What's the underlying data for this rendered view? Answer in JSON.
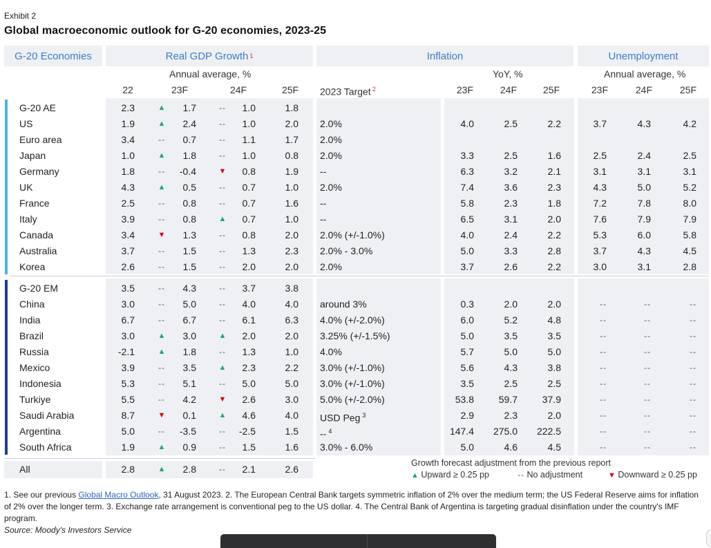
{
  "exhibit_label": "Exhibit 2",
  "title": "Global macroeconomic outlook for G-20 economies, 2023-25",
  "headers": {
    "economies": "G-20 Economies",
    "gdp": "Real GDP Growth",
    "gdp_note": "1",
    "inflation": "Inflation",
    "unemployment": "Unemployment"
  },
  "subheaders": {
    "gdp_unit": "Annual average, %",
    "inflation_unit": "YoY, %",
    "unemployment_unit": "Annual average, %",
    "gdp_years": [
      "22",
      "23F",
      "24F",
      "25F"
    ],
    "target_label": "2023 Target",
    "target_note": "2",
    "infl_years": [
      "23F",
      "24F",
      "25F"
    ],
    "unemp_years": [
      "23F",
      "24F",
      "25F"
    ]
  },
  "rows": [
    {
      "name": "G-20 AE",
      "g22": "2.3",
      "a23": "up",
      "g23": "1.7",
      "a24": "none",
      "g24": "1.0",
      "g25": "1.8",
      "target": "",
      "i23": "",
      "i24": "",
      "i25": "",
      "u23": "",
      "u24": "",
      "u25": ""
    },
    {
      "name": "US",
      "g22": "1.9",
      "a23": "up",
      "g23": "2.4",
      "a24": "none",
      "g24": "1.0",
      "g25": "2.0",
      "target": "2.0%",
      "i23": "4.0",
      "i24": "2.5",
      "i25": "2.2",
      "u23": "3.7",
      "u24": "4.3",
      "u25": "4.2"
    },
    {
      "name": "Euro area",
      "g22": "3.4",
      "a23": "none",
      "g23": "0.7",
      "a24": "none",
      "g24": "1.1",
      "g25": "1.7",
      "target": "2.0%",
      "i23": "",
      "i24": "",
      "i25": "",
      "u23": "",
      "u24": "",
      "u25": ""
    },
    {
      "name": "Japan",
      "g22": "1.0",
      "a23": "up",
      "g23": "1.8",
      "a24": "none",
      "g24": "1.0",
      "g25": "0.8",
      "target": "2.0%",
      "i23": "3.3",
      "i24": "2.5",
      "i25": "1.6",
      "u23": "2.5",
      "u24": "2.4",
      "u25": "2.5"
    },
    {
      "name": "Germany",
      "g22": "1.8",
      "a23": "none",
      "g23": "-0.4",
      "a24": "down",
      "g24": "0.8",
      "g25": "1.9",
      "target": "--",
      "i23": "6.3",
      "i24": "3.2",
      "i25": "2.1",
      "u23": "3.1",
      "u24": "3.1",
      "u25": "3.1"
    },
    {
      "name": "UK",
      "g22": "4.3",
      "a23": "up",
      "g23": "0.5",
      "a24": "none",
      "g24": "0.7",
      "g25": "1.0",
      "target": "2.0%",
      "i23": "7.4",
      "i24": "3.6",
      "i25": "2.3",
      "u23": "4.3",
      "u24": "5.0",
      "u25": "5.2"
    },
    {
      "name": "France",
      "g22": "2.5",
      "a23": "none",
      "g23": "0.8",
      "a24": "none",
      "g24": "0.7",
      "g25": "1.6",
      "target": "--",
      "i23": "5.8",
      "i24": "2.3",
      "i25": "1.8",
      "u23": "7.2",
      "u24": "7.8",
      "u25": "8.0"
    },
    {
      "name": "Italy",
      "g22": "3.9",
      "a23": "none",
      "g23": "0.8",
      "a24": "up",
      "g24": "0.7",
      "g25": "1.0",
      "target": "--",
      "i23": "6.5",
      "i24": "3.1",
      "i25": "2.0",
      "u23": "7.6",
      "u24": "7.9",
      "u25": "7.9"
    },
    {
      "name": "Canada",
      "g22": "3.4",
      "a23": "down",
      "g23": "1.3",
      "a24": "none",
      "g24": "0.8",
      "g25": "2.0",
      "target": "2.0% (+/-1.0%)",
      "i23": "4.0",
      "i24": "2.4",
      "i25": "2.2",
      "u23": "5.3",
      "u24": "6.0",
      "u25": "5.8"
    },
    {
      "name": "Australia",
      "g22": "3.7",
      "a23": "none",
      "g23": "1.5",
      "a24": "none",
      "g24": "1.3",
      "g25": "2.3",
      "target": "2.0% - 3.0%",
      "i23": "5.0",
      "i24": "3.3",
      "i25": "2.8",
      "u23": "3.7",
      "u24": "4.3",
      "u25": "4.5"
    },
    {
      "name": "Korea",
      "g22": "2.6",
      "a23": "none",
      "g23": "1.5",
      "a24": "none",
      "g24": "2.0",
      "g25": "2.0",
      "target": "2.0%",
      "i23": "3.7",
      "i24": "2.6",
      "i25": "2.2",
      "u23": "3.0",
      "u24": "3.1",
      "u25": "2.8"
    },
    {
      "name": "G-20 EM",
      "g22": "3.5",
      "a23": "none",
      "g23": "4.3",
      "a24": "none",
      "g24": "3.7",
      "g25": "3.8",
      "target": "",
      "i23": "",
      "i24": "",
      "i25": "",
      "u23": "",
      "u24": "",
      "u25": ""
    },
    {
      "name": "China",
      "g22": "3.0",
      "a23": "none",
      "g23": "5.0",
      "a24": "none",
      "g24": "4.0",
      "g25": "4.0",
      "target": "around 3%",
      "i23": "0.3",
      "i24": "2.0",
      "i25": "2.0",
      "u23": "--",
      "u24": "--",
      "u25": "--"
    },
    {
      "name": "India",
      "g22": "6.7",
      "a23": "none",
      "g23": "6.7",
      "a24": "none",
      "g24": "6.1",
      "g25": "6.3",
      "target": "4.0% (+/-2.0%)",
      "i23": "6.0",
      "i24": "5.2",
      "i25": "4.8",
      "u23": "--",
      "u24": "--",
      "u25": "--"
    },
    {
      "name": "Brazil",
      "g22": "3.0",
      "a23": "up",
      "g23": "3.0",
      "a24": "up",
      "g24": "2.0",
      "g25": "2.0",
      "target": "3.25% (+/-1.5%)",
      "i23": "5.0",
      "i24": "3.5",
      "i25": "3.5",
      "u23": "--",
      "u24": "--",
      "u25": "--"
    },
    {
      "name": "Russia",
      "g22": "-2.1",
      "a23": "up",
      "g23": "1.8",
      "a24": "none",
      "g24": "1.3",
      "g25": "1.0",
      "target": "4.0%",
      "i23": "5.7",
      "i24": "5.0",
      "i25": "5.0",
      "u23": "--",
      "u24": "--",
      "u25": "--"
    },
    {
      "name": "Mexico",
      "g22": "3.9",
      "a23": "none",
      "g23": "3.5",
      "a24": "up",
      "g24": "2.3",
      "g25": "2.2",
      "target": "3.0% (+/-1.0%)",
      "i23": "5.6",
      "i24": "4.3",
      "i25": "3.8",
      "u23": "--",
      "u24": "--",
      "u25": "--"
    },
    {
      "name": "Indonesia",
      "g22": "5.3",
      "a23": "none",
      "g23": "5.1",
      "a24": "none",
      "g24": "5.0",
      "g25": "5.0",
      "target": "3.0% (+/-1.0%)",
      "i23": "3.5",
      "i24": "2.5",
      "i25": "2.5",
      "u23": "--",
      "u24": "--",
      "u25": "--"
    },
    {
      "name": "Turkiye",
      "g22": "5.5",
      "a23": "none",
      "g23": "4.2",
      "a24": "down",
      "g24": "2.6",
      "g25": "3.0",
      "target": "5.0% (+/-2.0%)",
      "i23": "53.8",
      "i24": "59.7",
      "i25": "37.9",
      "u23": "--",
      "u24": "--",
      "u25": "--"
    },
    {
      "name": "Saudi Arabia",
      "g22": "8.7",
      "a23": "down",
      "g23": "0.1",
      "a24": "up",
      "g24": "4.6",
      "g25": "4.0",
      "target": "USD Peg",
      "target_note": "3",
      "i23": "2.9",
      "i24": "2.3",
      "i25": "2.0",
      "u23": "--",
      "u24": "--",
      "u25": "--"
    },
    {
      "name": "Argentina",
      "g22": "5.0",
      "a23": "none",
      "g23": "-3.5",
      "a24": "none",
      "g24": "-2.5",
      "g25": "1.5",
      "target": "--",
      "target_note": "4",
      "i23": "147.4",
      "i24": "275.0",
      "i25": "222.5",
      "u23": "--",
      "u24": "--",
      "u25": "--"
    },
    {
      "name": "South Africa",
      "g22": "1.9",
      "a23": "up",
      "g23": "0.9",
      "a24": "none",
      "g24": "1.5",
      "g25": "1.6",
      "target": "3.0% - 6.0%",
      "i23": "5.0",
      "i24": "4.6",
      "i25": "4.5",
      "u23": "--",
      "u24": "--",
      "u25": "--"
    },
    {
      "name": "All",
      "g22": "2.8",
      "a23": "up",
      "g23": "2.8",
      "a24": "none",
      "g24": "2.1",
      "g25": "2.6",
      "target": "",
      "i23": "",
      "i24": "",
      "i25": "",
      "u23": "",
      "u24": "",
      "u25": ""
    }
  ],
  "symbols": {
    "up": "▲",
    "down": "▼",
    "none": "--"
  },
  "legend": {
    "title": "Growth forecast adjustment from the previous report",
    "up_label": "Upward ≥ 0.25 pp",
    "none_label": "No adjustment",
    "down_label": "Downward ≥ 0.25 pp"
  },
  "colors": {
    "up": "#1aa877",
    "down": "#d9001b",
    "header_text": "#3d7cc9",
    "ae_bar": "#4ab3e8",
    "em_bar": "#1f3c9c"
  },
  "notes": {
    "pre": "1. See our previous ",
    "link": "Global Macro Outlook",
    "post": ", 31 August 2023. 2. The European Central Bank targets symmetric inflation of 2% over the medium term; the US Federal Reserve aims for inflation of 2% over the longer term. 3. Exchange rate arrangement is conventional peg to the US dollar. 4. The Central Bank of Argentina is targeting gradual disinflation under the country's IMF program."
  },
  "source": "Source: Moody's Investors Service"
}
